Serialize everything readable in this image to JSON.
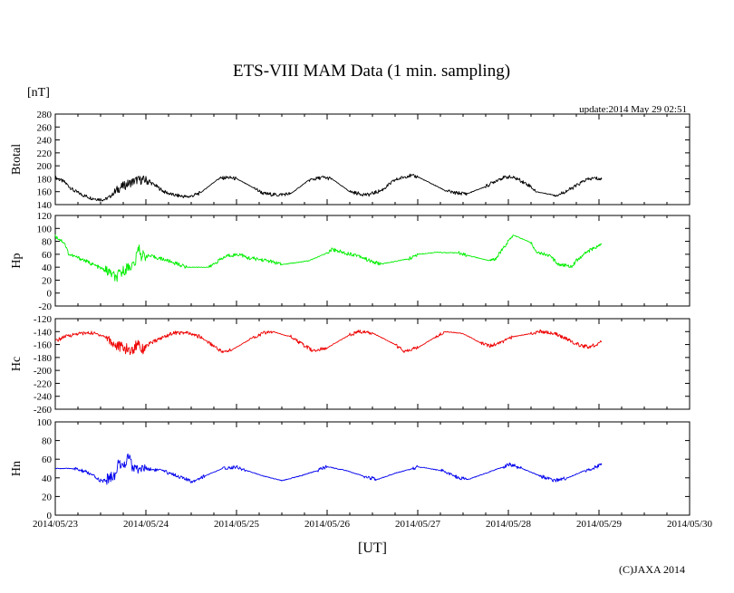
{
  "chart_data": {
    "type": "line",
    "title": "ETS-VIII MAM Data (1 min. sampling)",
    "unit_label": "[nT]",
    "update_label": "update:2014 May 29 02:51",
    "xlabel": "[UT]",
    "copyright": "(C)JAXA 2014",
    "x_range_days": [
      0,
      7
    ],
    "x_ticks": [
      {
        "day": 0,
        "label": "2014/05/23"
      },
      {
        "day": 1,
        "label": "2014/05/24"
      },
      {
        "day": 2,
        "label": "2014/05/25"
      },
      {
        "day": 3,
        "label": "2014/05/26"
      },
      {
        "day": 4,
        "label": "2014/05/27"
      },
      {
        "day": 5,
        "label": "2014/05/28"
      },
      {
        "day": 6,
        "label": "2014/05/29"
      },
      {
        "day": 7,
        "label": "2014/05/30"
      }
    ],
    "series": [
      {
        "name": "Btotal",
        "color": "#000000",
        "ylim": [
          140,
          280
        ],
        "yticks": [
          140,
          160,
          180,
          200,
          220,
          240,
          260,
          280
        ],
        "points": [
          [
            0,
            182
          ],
          [
            0.1,
            175
          ],
          [
            0.2,
            162
          ],
          [
            0.3,
            155
          ],
          [
            0.4,
            150
          ],
          [
            0.5,
            148
          ],
          [
            0.55,
            148
          ],
          [
            0.6,
            152
          ],
          [
            0.65,
            158
          ],
          [
            0.7,
            165
          ],
          [
            0.8,
            172
          ],
          [
            0.9,
            178
          ],
          [
            1.0,
            178
          ],
          [
            1.1,
            170
          ],
          [
            1.2,
            160
          ],
          [
            1.3,
            155
          ],
          [
            1.45,
            152
          ],
          [
            1.5,
            153
          ],
          [
            1.6,
            158
          ],
          [
            1.8,
            180
          ],
          [
            1.9,
            182
          ],
          [
            2.0,
            180
          ],
          [
            2.2,
            165
          ],
          [
            2.3,
            157
          ],
          [
            2.45,
            155
          ],
          [
            2.6,
            157
          ],
          [
            2.8,
            178
          ],
          [
            2.95,
            182
          ],
          [
            3.05,
            180
          ],
          [
            3.25,
            160
          ],
          [
            3.35,
            157
          ],
          [
            3.45,
            155
          ],
          [
            3.6,
            162
          ],
          [
            3.75,
            178
          ],
          [
            3.9,
            185
          ],
          [
            4.0,
            183
          ],
          [
            4.3,
            162
          ],
          [
            4.4,
            158
          ],
          [
            4.55,
            157
          ],
          [
            4.75,
            168
          ],
          [
            4.9,
            180
          ],
          [
            5.0,
            183
          ],
          [
            5.1,
            180
          ],
          [
            5.25,
            168
          ],
          [
            5.3,
            160
          ],
          [
            5.5,
            155
          ],
          [
            5.55,
            155
          ],
          [
            5.7,
            165
          ],
          [
            5.85,
            178
          ],
          [
            5.95,
            181
          ],
          [
            6.03,
            179
          ]
        ]
      },
      {
        "name": "Hp",
        "color": "#00ee00",
        "ylim": [
          -20,
          120
        ],
        "yticks": [
          -20,
          0,
          20,
          40,
          60,
          80,
          100,
          120
        ],
        "points": [
          [
            0,
            88
          ],
          [
            0.1,
            78
          ],
          [
            0.15,
            60
          ],
          [
            0.3,
            52
          ],
          [
            0.45,
            42
          ],
          [
            0.55,
            35
          ],
          [
            0.62,
            30
          ],
          [
            0.67,
            22
          ],
          [
            0.7,
            28
          ],
          [
            0.8,
            40
          ],
          [
            0.88,
            45
          ],
          [
            0.92,
            72
          ],
          [
            0.95,
            58
          ],
          [
            1.05,
            57
          ],
          [
            1.2,
            52
          ],
          [
            1.35,
            45
          ],
          [
            1.45,
            40
          ],
          [
            1.7,
            40
          ],
          [
            1.8,
            50
          ],
          [
            1.9,
            58
          ],
          [
            2.05,
            60
          ],
          [
            2.1,
            55
          ],
          [
            2.25,
            52
          ],
          [
            2.35,
            50
          ],
          [
            2.5,
            44
          ],
          [
            2.8,
            50
          ],
          [
            3.0,
            62
          ],
          [
            3.05,
            68
          ],
          [
            3.2,
            62
          ],
          [
            3.35,
            58
          ],
          [
            3.5,
            48
          ],
          [
            3.6,
            45
          ],
          [
            3.9,
            53
          ],
          [
            4.0,
            60
          ],
          [
            4.2,
            63
          ],
          [
            4.45,
            62
          ],
          [
            4.55,
            58
          ],
          [
            4.8,
            50
          ],
          [
            4.85,
            52
          ],
          [
            5.0,
            80
          ],
          [
            5.05,
            90
          ],
          [
            5.25,
            78
          ],
          [
            5.3,
            65
          ],
          [
            5.45,
            58
          ],
          [
            5.55,
            45
          ],
          [
            5.65,
            42
          ],
          [
            5.7,
            42
          ],
          [
            5.75,
            50
          ],
          [
            5.85,
            62
          ],
          [
            5.95,
            70
          ],
          [
            6.03,
            75
          ]
        ]
      },
      {
        "name": "Hc",
        "color": "#ee0000",
        "ylim": [
          -260,
          -120
        ],
        "yticks": [
          -260,
          -240,
          -220,
          -200,
          -180,
          -160,
          -140,
          -120
        ],
        "points": [
          [
            0,
            -155
          ],
          [
            0.1,
            -148
          ],
          [
            0.25,
            -143
          ],
          [
            0.4,
            -142
          ],
          [
            0.5,
            -145
          ],
          [
            0.58,
            -150
          ],
          [
            0.65,
            -160
          ],
          [
            0.75,
            -165
          ],
          [
            0.85,
            -170
          ],
          [
            0.92,
            -155
          ],
          [
            0.95,
            -168
          ],
          [
            1.05,
            -158
          ],
          [
            1.2,
            -148
          ],
          [
            1.3,
            -142
          ],
          [
            1.45,
            -142
          ],
          [
            1.6,
            -148
          ],
          [
            1.75,
            -162
          ],
          [
            1.85,
            -172
          ],
          [
            1.95,
            -168
          ],
          [
            2.15,
            -152
          ],
          [
            2.3,
            -142
          ],
          [
            2.4,
            -140
          ],
          [
            2.6,
            -148
          ],
          [
            2.75,
            -162
          ],
          [
            2.85,
            -170
          ],
          [
            3.0,
            -165
          ],
          [
            3.25,
            -145
          ],
          [
            3.35,
            -140
          ],
          [
            3.5,
            -142
          ],
          [
            3.75,
            -160
          ],
          [
            3.85,
            -170
          ],
          [
            4.0,
            -165
          ],
          [
            4.2,
            -148
          ],
          [
            4.3,
            -140
          ],
          [
            4.5,
            -143
          ],
          [
            4.7,
            -158
          ],
          [
            4.8,
            -162
          ],
          [
            4.95,
            -155
          ],
          [
            5.05,
            -148
          ],
          [
            5.25,
            -143
          ],
          [
            5.35,
            -140
          ],
          [
            5.5,
            -142
          ],
          [
            5.65,
            -152
          ],
          [
            5.8,
            -162
          ],
          [
            5.9,
            -164
          ],
          [
            6.03,
            -156
          ]
        ]
      },
      {
        "name": "Hn",
        "color": "#0000ee",
        "ylim": [
          0,
          100
        ],
        "yticks": [
          0,
          20,
          40,
          60,
          80,
          100
        ],
        "points": [
          [
            0,
            50
          ],
          [
            0.2,
            50
          ],
          [
            0.35,
            46
          ],
          [
            0.45,
            40
          ],
          [
            0.52,
            36
          ],
          [
            0.6,
            40
          ],
          [
            0.68,
            45
          ],
          [
            0.7,
            60
          ],
          [
            0.75,
            48
          ],
          [
            0.82,
            68
          ],
          [
            0.85,
            50
          ],
          [
            1.0,
            50
          ],
          [
            1.15,
            48
          ],
          [
            1.3,
            44
          ],
          [
            1.45,
            38
          ],
          [
            1.5,
            36
          ],
          [
            1.65,
            42
          ],
          [
            1.85,
            50
          ],
          [
            2.0,
            52
          ],
          [
            2.1,
            48
          ],
          [
            2.3,
            42
          ],
          [
            2.5,
            37
          ],
          [
            2.7,
            42
          ],
          [
            2.9,
            48
          ],
          [
            3.0,
            52
          ],
          [
            3.2,
            48
          ],
          [
            3.4,
            42
          ],
          [
            3.55,
            38
          ],
          [
            3.75,
            45
          ],
          [
            3.95,
            50
          ],
          [
            4.0,
            52
          ],
          [
            4.25,
            48
          ],
          [
            4.4,
            42
          ],
          [
            4.55,
            38
          ],
          [
            4.75,
            45
          ],
          [
            4.95,
            52
          ],
          [
            5.0,
            55
          ],
          [
            5.15,
            50
          ],
          [
            5.35,
            42
          ],
          [
            5.5,
            37
          ],
          [
            5.65,
            40
          ],
          [
            5.85,
            48
          ],
          [
            6.0,
            53
          ],
          [
            6.03,
            54
          ]
        ]
      }
    ]
  }
}
